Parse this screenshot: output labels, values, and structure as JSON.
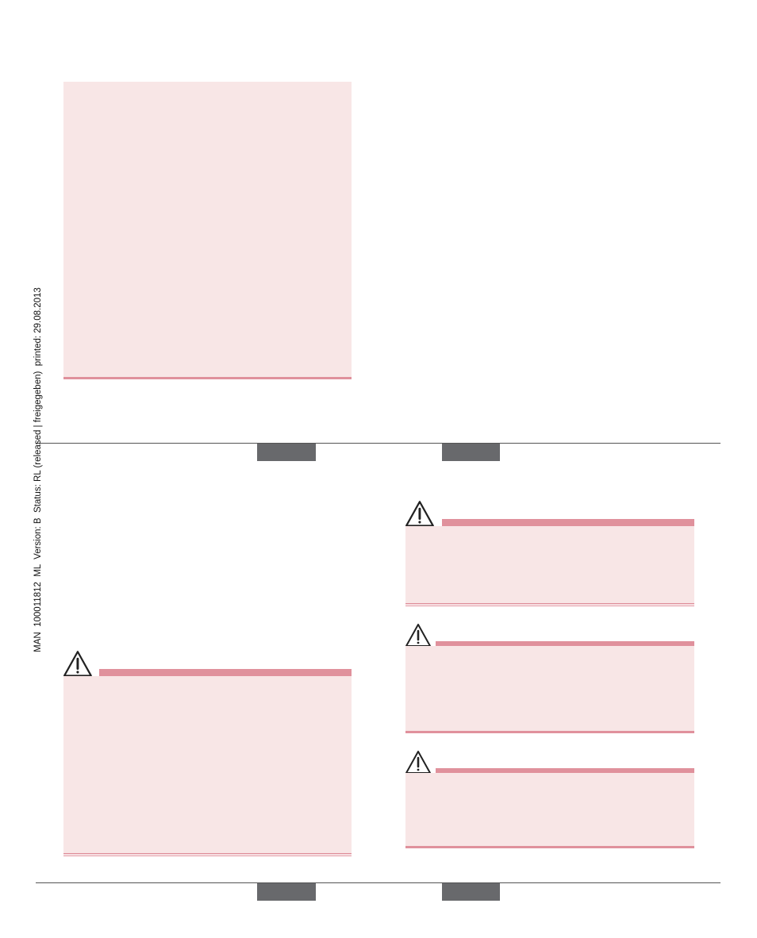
{
  "footer": {
    "document_info": "MAN  100011812  ML  Version: B  Status: RL (released | freigegeben)  printed: 29.08.2013"
  }
}
